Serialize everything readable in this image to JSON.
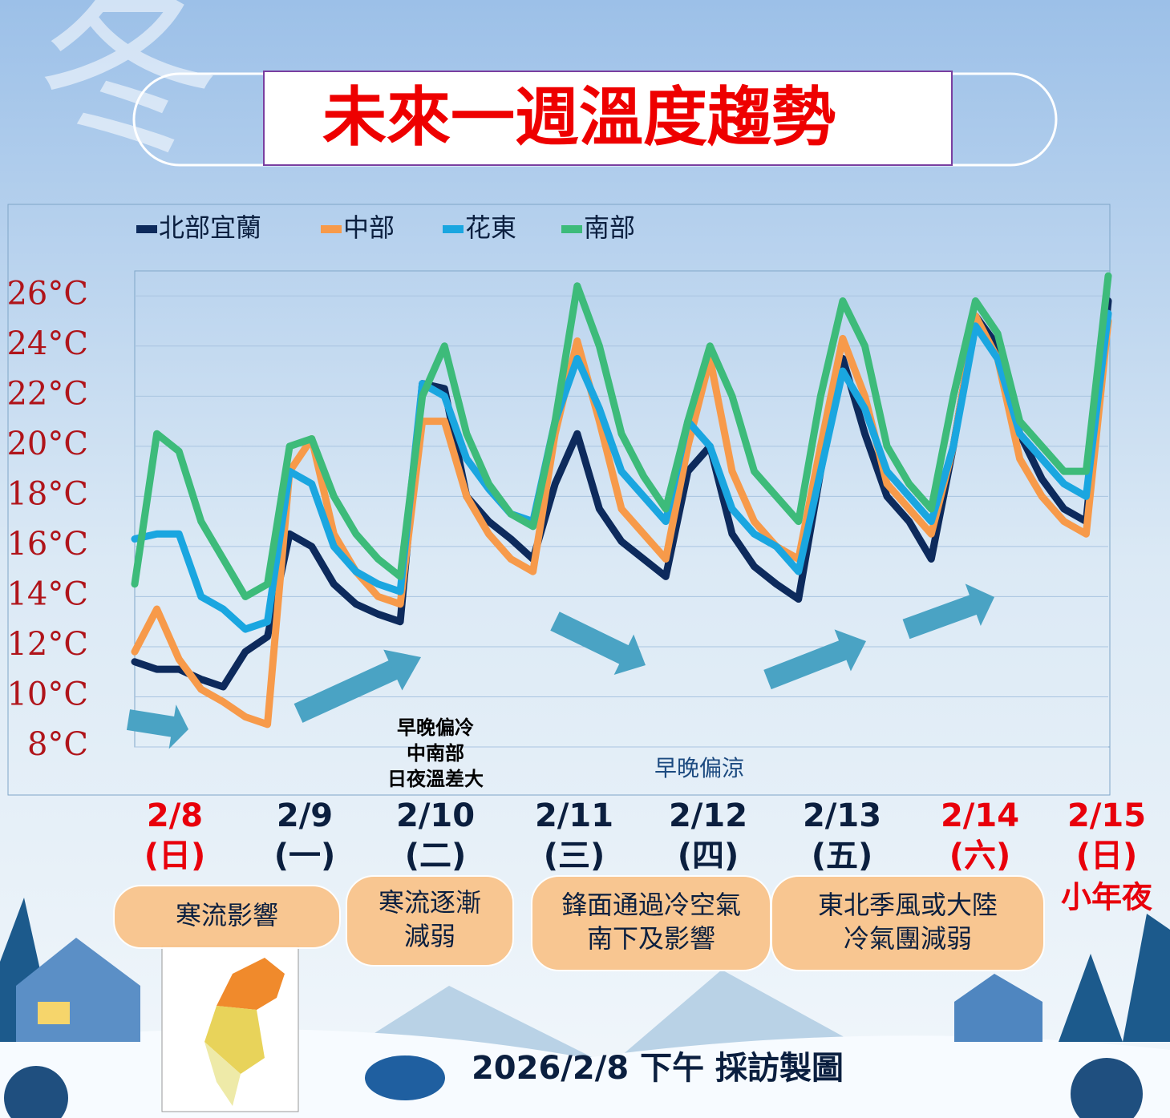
{
  "watermark": "冬",
  "chart_data": {
    "type": "line",
    "title": "未來一週溫度趨勢",
    "categories": [
      null,
      null,
      null,
      null,
      null,
      null,
      null,
      null,
      null,
      null,
      null,
      null,
      null,
      null,
      null,
      null,
      null,
      null,
      null,
      null,
      null,
      null,
      null,
      null,
      null,
      null,
      null,
      null,
      null,
      null,
      null,
      null,
      null,
      null,
      null,
      null,
      null,
      null,
      null,
      null,
      null,
      null,
      null,
      null,
      null
    ],
    "series": [
      {
        "name": "北部宜蘭",
        "color": "#0d2a5c",
        "values": [
          11.4,
          11.1,
          11.1,
          10.7,
          10.4,
          11.8,
          12.4,
          16.5,
          16,
          14.5,
          13.7,
          13.3,
          13,
          22.5,
          22.3,
          18,
          17,
          16.3,
          15.5,
          18.5,
          20.5,
          17.5,
          16.2,
          15.5,
          14.8,
          19,
          20,
          16.5,
          15.2,
          14.5,
          13.9,
          19,
          23.5,
          20.5,
          18,
          17,
          15.5,
          20,
          25.2,
          24,
          20.5,
          18.7,
          17.5,
          17,
          25.8
        ]
      },
      {
        "name": "中部",
        "color": "#f79a4a",
        "values": [
          11.8,
          13.5,
          11.5,
          10.3,
          9.8,
          9.2,
          8.9,
          19,
          20.3,
          16.5,
          15,
          14,
          13.7,
          21,
          21,
          18,
          16.5,
          15.5,
          15,
          20.5,
          24.2,
          21,
          17.5,
          16.5,
          15.5,
          20,
          23.5,
          19,
          17,
          16,
          15.5,
          20,
          24.3,
          22,
          18.5,
          17.5,
          16.5,
          20,
          25.2,
          23.5,
          19.5,
          18,
          17,
          16.5,
          25
        ]
      },
      {
        "name": "花東",
        "color": "#1aa6e0",
        "values": [
          16.3,
          16.5,
          16.5,
          14,
          13.5,
          12.7,
          13,
          19,
          18.5,
          16,
          15,
          14.5,
          14.2,
          22.5,
          22,
          19.5,
          18.3,
          17.3,
          17,
          21,
          23.5,
          21.5,
          19,
          18,
          17,
          21,
          20,
          17.5,
          16.5,
          16,
          15,
          19,
          23,
          21.5,
          19,
          18,
          17,
          20,
          24.8,
          23.5,
          20.5,
          19.5,
          18.5,
          18,
          25.3
        ]
      },
      {
        "name": "南部",
        "color": "#3dbb7a",
        "values": [
          14.5,
          20.5,
          19.8,
          17,
          15.5,
          14,
          14.5,
          20,
          20.3,
          18,
          16.5,
          15.5,
          14.8,
          22,
          24,
          20.5,
          18.5,
          17.3,
          16.8,
          21,
          26.4,
          24,
          20.5,
          18.8,
          17.5,
          21,
          24,
          22,
          19,
          18,
          17,
          22,
          25.8,
          24,
          20,
          18.5,
          17.5,
          22,
          25.8,
          24.5,
          21,
          20,
          19,
          19,
          26.8
        ]
      }
    ],
    "ylim": [
      8,
      27
    ],
    "yticks": [
      {
        "value": 8,
        "label": "8°C"
      },
      {
        "value": 10,
        "label": "10°C"
      },
      {
        "value": 12,
        "label": "12°C"
      },
      {
        "value": 14,
        "label": "14°C"
      },
      {
        "value": 16,
        "label": "16°C"
      },
      {
        "value": 18,
        "label": "18°C"
      },
      {
        "value": 20,
        "label": "20°C"
      },
      {
        "value": 22,
        "label": "22°C"
      },
      {
        "value": 24,
        "label": "24°C"
      },
      {
        "value": 26,
        "label": "26°C"
      }
    ],
    "grid": true,
    "annotations": [
      [
        "早晚偏冷",
        "中南部",
        "日夜溫差大"
      ],
      [
        "早晚偏涼"
      ]
    ]
  },
  "days": [
    {
      "date": "2/8",
      "weekday": "(日)",
      "color": "#e8000b"
    },
    {
      "date": "2/9",
      "weekday": "(一)",
      "color": "#0b1f3f"
    },
    {
      "date": "2/10",
      "weekday": "(二)",
      "color": "#0b1f3f"
    },
    {
      "date": "2/11",
      "weekday": "(三)",
      "color": "#0b1f3f"
    },
    {
      "date": "2/12",
      "weekday": "(四)",
      "color": "#0b1f3f"
    },
    {
      "date": "2/13",
      "weekday": "(五)",
      "color": "#0b1f3f"
    },
    {
      "date": "2/14",
      "weekday": "(六)",
      "color": "#e8000b"
    },
    {
      "date": "2/15",
      "weekday": "(日)",
      "color": "#e8000b"
    }
  ],
  "festival": "小年夜",
  "phases": [
    [
      "寒流影響"
    ],
    [
      "寒流逐漸",
      "減弱"
    ],
    [
      "鋒面通過冷空氣",
      "南下及影響"
    ],
    [
      "東北季風或大陸",
      "冷氣團減弱"
    ]
  ],
  "footer": "2026/2/8 下午 採訪製圖"
}
